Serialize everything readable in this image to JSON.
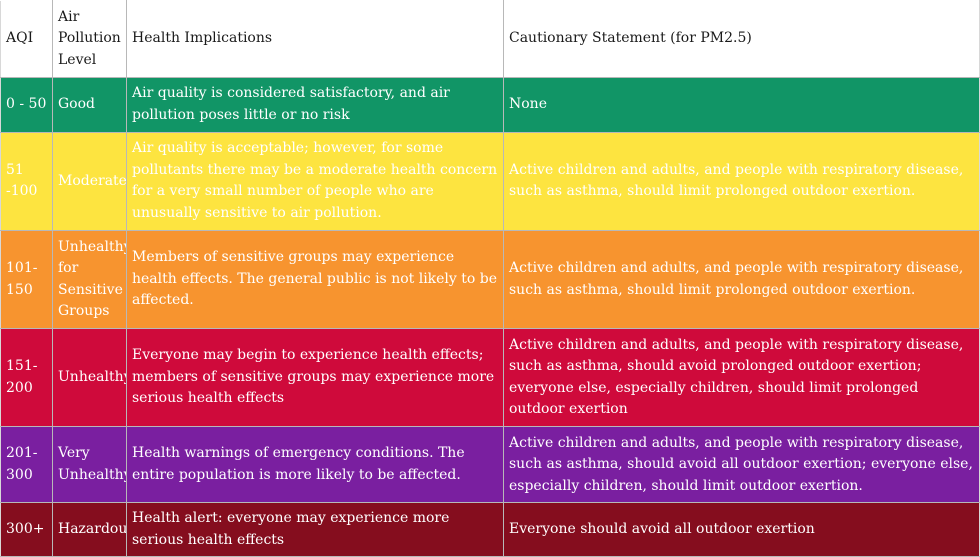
{
  "header": {
    "aqi": "AQI",
    "level": "Air Pollution Level",
    "health": "Health Implications",
    "caution": "Cautionary Statement (for PM2.5)"
  },
  "rows": [
    {
      "aqi": "0 - 50",
      "level": "Good",
      "health": "Air quality is considered satisfactory, and air pollution poses little or no risk",
      "caution": "None",
      "color": "#119566"
    },
    {
      "aqi": "51 -100",
      "level": "Moderate",
      "health": "Air quality is acceptable; however, for some pollutants there may be a moderate health concern for a very small number of people who are unusually sensitive to air pollution.",
      "caution": "Active children and adults, and people with respiratory disease, such as asthma, should limit prolonged outdoor exertion.",
      "color": "#fde440"
    },
    {
      "aqi": "101-150",
      "level": "Unhealthy for Sensitive Groups",
      "health": "Members of sensitive groups may experience health effects. The general public is not likely to be affected.",
      "caution": "Active children and adults, and people with respiratory disease, such as asthma, should limit prolonged outdoor exertion.",
      "color": "#f7942f"
    },
    {
      "aqi": "151-200",
      "level": "Unhealthy",
      "health": "Everyone may begin to experience health effects; members of sensitive groups may experience more serious health effects",
      "caution": "Active children and adults, and people with respiratory disease, such as asthma, should avoid prolonged outdoor exertion; everyone else, especially children, should limit prolonged outdoor exertion",
      "color": "#cf0a3b"
    },
    {
      "aqi": "201-300",
      "level": "Very Unhealthy",
      "health": "Health warnings of emergency conditions. The entire population is more likely to be affected.",
      "caution": "Active children and adults, and people with respiratory disease, such as asthma, should avoid all outdoor exertion; everyone else, especially children, should limit outdoor exertion.",
      "color": "#7a1fa0"
    },
    {
      "aqi": "300+",
      "level": "Hazardous",
      "health": "Health alert: everyone may experience more serious health effects",
      "caution": "Everyone should avoid all outdoor exertion",
      "color": "#850d1e"
    }
  ]
}
